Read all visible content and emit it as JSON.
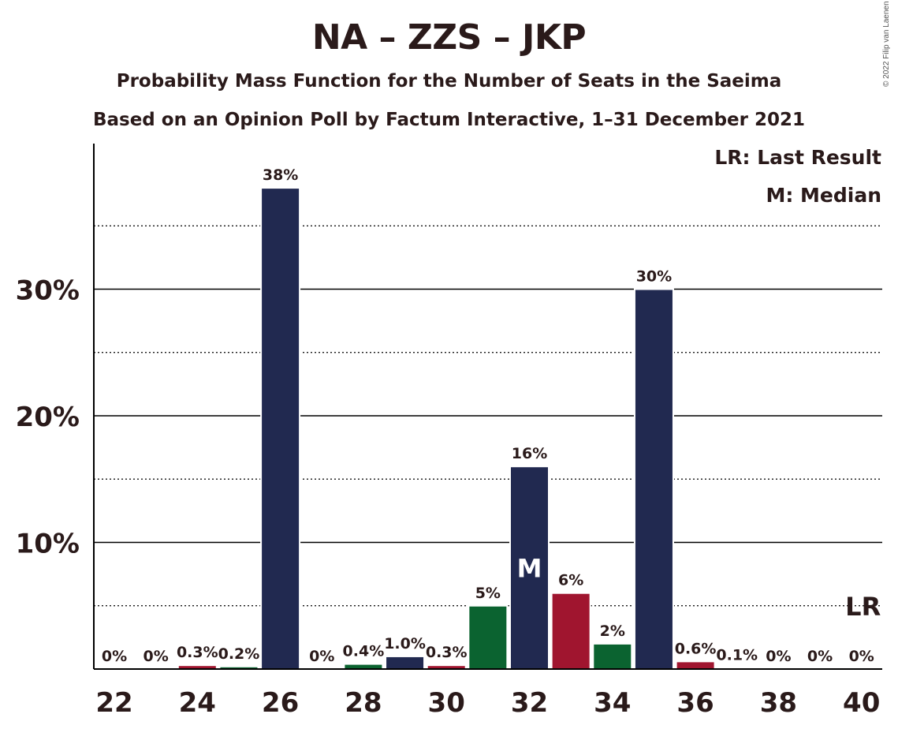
{
  "header": {
    "title": "NA – ZZS – JKP",
    "subtitle_1": "Probability Mass Function for the Number of Seats in the Saeima",
    "subtitle_2": "Based on an Opinion Poll by Factum Interactive, 1–31 December 2021",
    "copyright": "© 2022 Filip van Laenen"
  },
  "legend": {
    "lr": "LR: Last Result",
    "median": "M: Median"
  },
  "colors": {
    "navy": "#212950",
    "green": "#0b6330",
    "red": "#a0152f",
    "text": "#2a1a1a"
  },
  "chart_data": {
    "type": "bar",
    "title": "NA – ZZS – JKP",
    "x": [
      22,
      23,
      24,
      25,
      26,
      27,
      28,
      29,
      30,
      31,
      32,
      33,
      34,
      35,
      36,
      37,
      38,
      39,
      40
    ],
    "values": [
      0,
      0,
      0.3,
      0.2,
      38,
      0,
      0.4,
      1.0,
      0.3,
      5,
      16,
      6,
      2,
      30,
      0.6,
      0.1,
      0,
      0,
      0
    ],
    "value_labels": [
      "0%",
      "0%",
      "0.3%",
      "0.2%",
      "38%",
      "0%",
      "0.4%",
      "1.0%",
      "0.3%",
      "5%",
      "16%",
      "6%",
      "2%",
      "30%",
      "0.6%",
      "0.1%",
      "0%",
      "0%",
      "0%"
    ],
    "bar_colors": [
      "navy",
      "navy",
      "red",
      "green",
      "navy",
      "navy",
      "green",
      "navy",
      "red",
      "green",
      "navy",
      "red",
      "green",
      "navy",
      "red",
      "green",
      "navy",
      "navy",
      "navy"
    ],
    "x_tick_labels": [
      "22",
      "24",
      "26",
      "28",
      "30",
      "32",
      "34",
      "36",
      "38",
      "40"
    ],
    "y_ticks": [
      10,
      20,
      30
    ],
    "y_tick_labels": [
      "10%",
      "20%",
      "30%"
    ],
    "y_minor_ticks": [
      5,
      15,
      25,
      35
    ],
    "ylim": [
      0,
      41.5
    ],
    "median_seat": 32,
    "median_label": "M",
    "last_result_seat": 40,
    "last_result_label": "LR",
    "grid": true
  }
}
